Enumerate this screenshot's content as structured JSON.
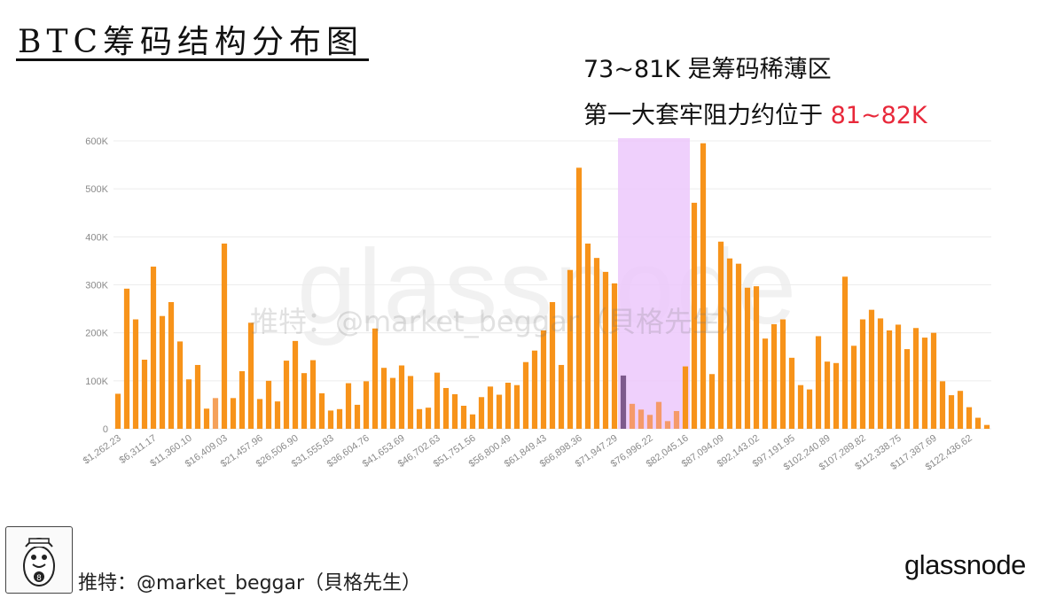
{
  "title": "BTC筹码结构分布图",
  "annotation": {
    "line1": "73~81K 是筹码稀薄区",
    "line2_prefix": "第一大套牢阻力约位于 ",
    "line2_highlight": "81~82K"
  },
  "watermark_text": "推特：@market_beggar（貝格先生）",
  "watermark_brand": "glassnode",
  "footer": {
    "handle": "推特：@market_beggar（貝格先生）",
    "brand": "glassnode"
  },
  "colors": {
    "bar": "#f7931a",
    "bar_light": "#f5a15a",
    "bar_dim": "#f59a6a",
    "bar_dark": "#7d5a8c",
    "highlight_zone": "#ecc8fb",
    "accent_red": "#e8283a"
  },
  "chart_data": {
    "type": "bar",
    "ylim": [
      0,
      600000
    ],
    "yticks": [
      "0",
      "100K",
      "200K",
      "300K",
      "400K",
      "500K",
      "600K"
    ],
    "xtick_labels": [
      "$1,262.23",
      "$6,311.17",
      "$11,360.10",
      "$16,409.03",
      "$21,457.96",
      "$26,506.90",
      "$31,555.83",
      "$36,604.76",
      "$41,653.69",
      "$46,702.63",
      "$51,751.56",
      "$56,800.49",
      "$61,849.43",
      "$66,898.36",
      "$71,947.29",
      "$76,996.22",
      "$82,045.16",
      "$87,094.09",
      "$92,143.02",
      "$97,191.95",
      "$102,240.89",
      "$107,289.82",
      "$112,338.75",
      "$117,387.69",
      "$122,436.62"
    ],
    "bin_width": 1262.23,
    "values": [
      73000,
      292000,
      228000,
      144000,
      338000,
      235000,
      264000,
      182000,
      103000,
      133000,
      42000,
      64000,
      386000,
      64000,
      120000,
      221000,
      62000,
      100000,
      57000,
      142000,
      183000,
      116000,
      143000,
      74000,
      38000,
      41000,
      95000,
      50000,
      99000,
      209000,
      127000,
      106000,
      132000,
      110000,
      41000,
      44000,
      117000,
      85000,
      72000,
      48000,
      30000,
      66000,
      88000,
      71000,
      96000,
      91000,
      139000,
      163000,
      205000,
      264000,
      133000,
      331000,
      544000,
      386000,
      356000,
      327000,
      303000,
      111000,
      52000,
      40000,
      29000,
      56000,
      16000,
      37000,
      130000,
      471000,
      595000,
      114000,
      390000,
      355000,
      344000,
      294000,
      297000,
      188000,
      218000,
      228000,
      148000,
      91000,
      82000,
      193000,
      140000,
      137000,
      317000,
      173000,
      228000,
      248000,
      230000,
      205000,
      217000,
      166000,
      210000,
      190000,
      200000,
      99000,
      70000,
      79000,
      45000,
      23000,
      8000
    ],
    "highlight_range": [
      "73K",
      "81K"
    ],
    "grid": true
  }
}
